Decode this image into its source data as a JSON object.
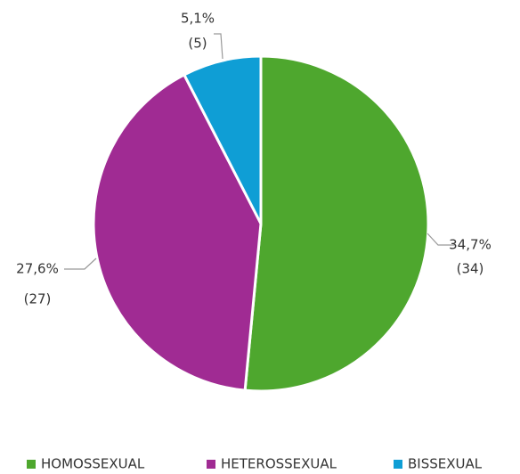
{
  "chart_data": {
    "type": "pie",
    "categories": [
      "HOMOSSEXUAL",
      "HETEROSSEXUAL",
      "BISSEXUAL"
    ],
    "values": [
      34,
      27,
      5
    ],
    "value_labels": [
      "(34)",
      "(27)",
      "(5)"
    ],
    "percentages": [
      34.7,
      27.6,
      5.1
    ],
    "percentage_labels": [
      "34,7%",
      "27,6%",
      "5,1%"
    ],
    "colors": [
      "#4ea72e",
      "#a02b93",
      "#0f9ed5"
    ],
    "legend": "bottom"
  }
}
